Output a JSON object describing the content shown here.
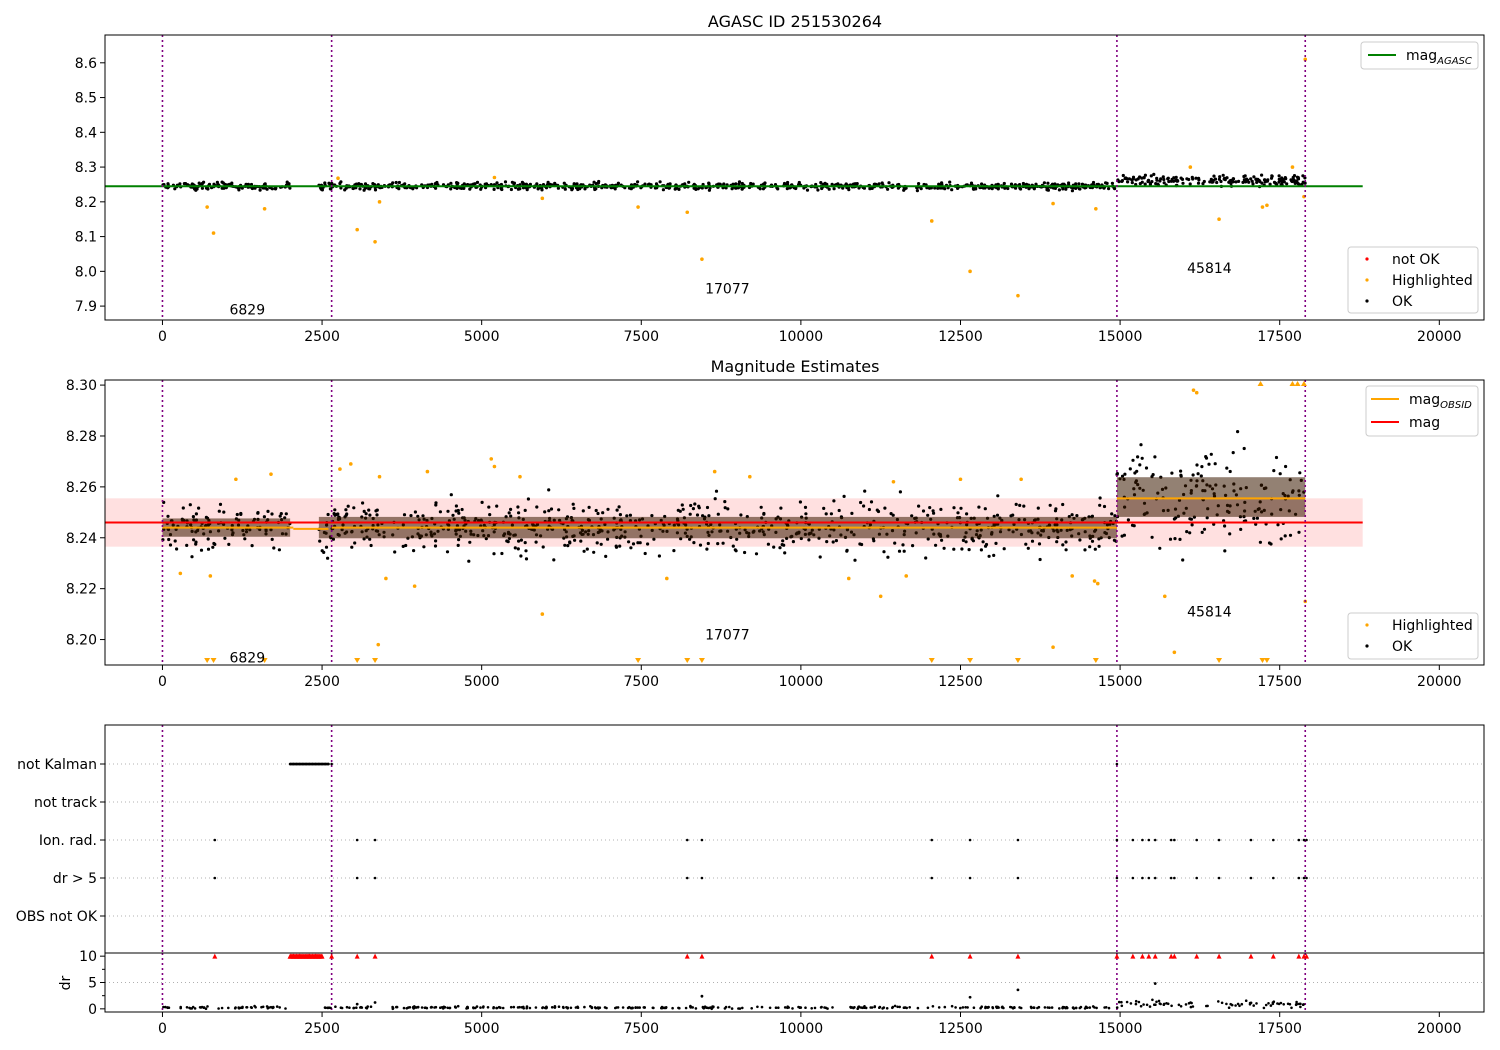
{
  "chart_data": [
    {
      "type": "scatter",
      "title": "AGASC ID 251530264",
      "xlabel": "",
      "ylabel": "",
      "xlim": [
        -900,
        20700
      ],
      "ylim": [
        7.86,
        8.68
      ],
      "xticks": [
        0,
        2500,
        5000,
        7500,
        10000,
        12500,
        15000,
        17500,
        20000
      ],
      "xtick_labels": [
        "0",
        "2500",
        "5000",
        "7500",
        "10000",
        "12500",
        "15000",
        "17500",
        "20000"
      ],
      "yticks": [
        7.9,
        8.0,
        8.1,
        8.2,
        8.3,
        8.4,
        8.5,
        8.6
      ],
      "ytick_labels": [
        "7.9",
        "8.0",
        "8.1",
        "8.2",
        "8.3",
        "8.4",
        "8.5",
        "8.6"
      ],
      "vlines": [
        0,
        2650,
        14950,
        17900
      ],
      "lines": [
        {
          "label": "mag",
          "subscript": "AGASC",
          "color": "#008000",
          "x": [
            -900,
            18800
          ],
          "y": [
            8.245,
            8.245
          ]
        }
      ],
      "segments": [
        {
          "x": [
            0,
            2000
          ],
          "center": 8.245,
          "spread": 0.007
        },
        {
          "x": [
            2450,
            14950
          ],
          "center": 8.245,
          "spread": 0.007
        },
        {
          "x": [
            14950,
            17900
          ],
          "center": 8.262,
          "spread": 0.012
        }
      ],
      "highlighted_points": [
        {
          "x": 700,
          "y": 8.185
        },
        {
          "x": 800,
          "y": 8.11
        },
        {
          "x": 1600,
          "y": 8.18
        },
        {
          "x": 3050,
          "y": 8.12
        },
        {
          "x": 3330,
          "y": 8.085
        },
        {
          "x": 3400,
          "y": 8.2
        },
        {
          "x": 5950,
          "y": 8.21
        },
        {
          "x": 7450,
          "y": 8.185
        },
        {
          "x": 8220,
          "y": 8.17
        },
        {
          "x": 8450,
          "y": 8.035
        },
        {
          "x": 12050,
          "y": 8.145
        },
        {
          "x": 12650,
          "y": 8.0
        },
        {
          "x": 13400,
          "y": 7.93
        },
        {
          "x": 13950,
          "y": 8.195
        },
        {
          "x": 14620,
          "y": 8.18
        },
        {
          "x": 16550,
          "y": 8.15
        },
        {
          "x": 17230,
          "y": 8.185
        },
        {
          "x": 17300,
          "y": 8.19
        },
        {
          "x": 17880,
          "y": 8.215
        },
        {
          "x": 17900,
          "y": 8.61
        },
        {
          "x": 2750,
          "y": 8.268
        },
        {
          "x": 5200,
          "y": 8.27
        },
        {
          "x": 16100,
          "y": 8.3
        },
        {
          "x": 17700,
          "y": 8.3
        }
      ],
      "annotations": [
        {
          "text": "6829",
          "x": 1050,
          "y": 7.89
        },
        {
          "text": "17077",
          "x": 8500,
          "y": 7.95
        },
        {
          "text": "45814",
          "x": 16050,
          "y": 8.01
        }
      ],
      "legends": [
        {
          "position": "top-right",
          "entries": [
            {
              "label": "mag",
              "subscript": "AGASC",
              "color": "#008000",
              "kind": "line"
            }
          ]
        },
        {
          "position": "bottom-right",
          "entries": [
            {
              "label": "not OK",
              "color": "#ff0000",
              "kind": "dot"
            },
            {
              "label": "Highlighted",
              "color": "#ffa500",
              "kind": "dot"
            },
            {
              "label": "OK",
              "color": "#000000",
              "kind": "dot"
            }
          ]
        }
      ]
    },
    {
      "type": "scatter",
      "title": "Magnitude Estimates",
      "xlabel": "",
      "ylabel": "",
      "xlim": [
        -900,
        20700
      ],
      "ylim": [
        8.19,
        8.302
      ],
      "xticks": [
        0,
        2500,
        5000,
        7500,
        10000,
        12500,
        15000,
        17500,
        20000
      ],
      "xtick_labels": [
        "0",
        "2500",
        "5000",
        "7500",
        "10000",
        "12500",
        "15000",
        "17500",
        "20000"
      ],
      "yticks": [
        8.2,
        8.22,
        8.24,
        8.26,
        8.28,
        8.3
      ],
      "ytick_labels": [
        "8.20",
        "8.22",
        "8.24",
        "8.26",
        "8.28",
        "8.30"
      ],
      "vlines": [
        0,
        2650,
        14950,
        17900
      ],
      "band": {
        "x": [
          -900,
          18800
        ],
        "y": [
          8.2365,
          8.2555
        ],
        "color": "#ff0000",
        "opacity": 0.12
      },
      "lines": [
        {
          "label": "mag",
          "color": "#ff0000",
          "x": [
            -900,
            18800
          ],
          "y": [
            8.246,
            8.246
          ]
        },
        {
          "label": "mag",
          "subscript": "OBSID",
          "color": "#ffa500",
          "x": [
            0,
            2050
          ],
          "y": [
            8.244,
            8.244
          ]
        },
        {
          "label": "mag",
          "subscript": "OBSID",
          "color": "#ffa500",
          "x": [
            2050,
            2600
          ],
          "y": [
            8.2435,
            8.2435
          ]
        },
        {
          "label": "mag",
          "subscript": "OBSID",
          "color": "#ffa500",
          "x": [
            2650,
            14950
          ],
          "y": [
            8.244,
            8.244
          ]
        },
        {
          "label": "mag",
          "subscript": "OBSID",
          "color": "#ffa500",
          "x": [
            14950,
            17900
          ],
          "y": [
            8.2555,
            8.2555
          ]
        }
      ],
      "segments": [
        {
          "x": [
            0,
            2000
          ],
          "center": 8.244,
          "spread": 0.006
        },
        {
          "x": [
            2450,
            14950
          ],
          "center": 8.244,
          "spread": 0.007
        },
        {
          "x": [
            14950,
            17900
          ],
          "center": 8.256,
          "spread": 0.013
        }
      ],
      "highlighted_points": [
        {
          "x": 280,
          "y": 8.226
        },
        {
          "x": 750,
          "y": 8.225
        },
        {
          "x": 1150,
          "y": 8.263
        },
        {
          "x": 1700,
          "y": 8.265
        },
        {
          "x": 2780,
          "y": 8.267
        },
        {
          "x": 2950,
          "y": 8.269
        },
        {
          "x": 3400,
          "y": 8.264
        },
        {
          "x": 3500,
          "y": 8.224
        },
        {
          "x": 3380,
          "y": 8.198
        },
        {
          "x": 3950,
          "y": 8.221
        },
        {
          "x": 4150,
          "y": 8.266
        },
        {
          "x": 5150,
          "y": 8.271
        },
        {
          "x": 5200,
          "y": 8.268
        },
        {
          "x": 5600,
          "y": 8.264
        },
        {
          "x": 5950,
          "y": 8.21
        },
        {
          "x": 7900,
          "y": 8.224
        },
        {
          "x": 8650,
          "y": 8.266
        },
        {
          "x": 9200,
          "y": 8.264
        },
        {
          "x": 10750,
          "y": 8.224
        },
        {
          "x": 11250,
          "y": 8.217
        },
        {
          "x": 11450,
          "y": 8.262
        },
        {
          "x": 11650,
          "y": 8.225
        },
        {
          "x": 12500,
          "y": 8.263
        },
        {
          "x": 13450,
          "y": 8.263
        },
        {
          "x": 13950,
          "y": 8.197
        },
        {
          "x": 14250,
          "y": 8.225
        },
        {
          "x": 14600,
          "y": 8.223
        },
        {
          "x": 14650,
          "y": 8.222
        },
        {
          "x": 15700,
          "y": 8.217
        },
        {
          "x": 15850,
          "y": 8.195
        },
        {
          "x": 16150,
          "y": 8.298
        },
        {
          "x": 16200,
          "y": 8.297
        },
        {
          "x": 17900,
          "y": 8.215
        }
      ],
      "offscale_low_x": [
        700,
        800,
        1600,
        3050,
        3330,
        7450,
        8220,
        8450,
        12050,
        12650,
        13400,
        14620,
        16550,
        17230,
        17300
      ],
      "offscale_high_x": [
        17200,
        17700,
        17780,
        17880
      ],
      "annotations": [
        {
          "text": "6829",
          "x": 1050,
          "y": 8.193
        },
        {
          "text": "17077",
          "x": 8500,
          "y": 8.202
        },
        {
          "text": "45814",
          "x": 16050,
          "y": 8.211
        }
      ],
      "legends": [
        {
          "position": "top-right",
          "entries": [
            {
              "label": "mag",
              "subscript": "OBSID",
              "color": "#ffa500",
              "kind": "line"
            },
            {
              "label": "mag",
              "color": "#ff0000",
              "kind": "line"
            }
          ]
        },
        {
          "position": "bottom-right",
          "entries": [
            {
              "label": "Highlighted",
              "color": "#ffa500",
              "kind": "dot"
            },
            {
              "label": "OK",
              "color": "#000000",
              "kind": "dot"
            }
          ]
        }
      ]
    },
    {
      "type": "scatter",
      "title": "",
      "xlabel": "",
      "ylabel": "",
      "xlim": [
        -900,
        20700
      ],
      "categories": [
        "not Kalman",
        "not track",
        "Ion. rad.",
        "dr > 5",
        "OBS not OK"
      ],
      "vlines": [
        0,
        2650,
        14950,
        17900
      ],
      "flags": [
        {
          "category": "not Kalman",
          "x": [
            2000,
            2050,
            2100,
            2150,
            2200,
            2250,
            2300,
            2350,
            2400,
            2450,
            2500,
            2550,
            2600,
            2650,
            14950
          ]
        },
        {
          "category": "not track",
          "x": []
        },
        {
          "category": "Ion. rad.",
          "x": [
            820,
            3050,
            3330,
            8220,
            8450,
            12050,
            12650,
            13400,
            14950,
            15200,
            15350,
            15450,
            15550,
            15800,
            15850,
            16200,
            16550,
            17050,
            17400,
            17800,
            17880,
            17920
          ]
        },
        {
          "category": "dr > 5",
          "x": [
            820,
            3050,
            3330,
            8220,
            8450,
            12050,
            12650,
            13400,
            14950,
            15200,
            15350,
            15450,
            15550,
            15800,
            15850,
            16200,
            16550,
            17050,
            17400,
            17800,
            17880,
            17920
          ]
        },
        {
          "category": "OBS not OK",
          "x": []
        }
      ]
    },
    {
      "type": "scatter",
      "title": "",
      "xlabel": "",
      "ylabel": "dr",
      "xlim": [
        -900,
        20700
      ],
      "ylim": [
        -0.6,
        10.6
      ],
      "xticks": [
        0,
        2500,
        5000,
        7500,
        10000,
        12500,
        15000,
        17500,
        20000
      ],
      "xtick_labels": [
        "0",
        "2500",
        "5000",
        "7500",
        "10000",
        "12500",
        "15000",
        "17500",
        "20000"
      ],
      "yticks": [
        0,
        5,
        10
      ],
      "ytick_labels": [
        "0",
        "5",
        "10"
      ],
      "vlines": [
        0,
        2650,
        14950,
        17900
      ],
      "segments": [
        {
          "x": [
            0,
            2000
          ],
          "center": 0.25,
          "spread": 0.15
        },
        {
          "x": [
            2450,
            14950
          ],
          "center": 0.25,
          "spread": 0.15
        },
        {
          "x": [
            14950,
            17900
          ],
          "center": 0.9,
          "spread": 0.45
        }
      ],
      "capped_x": [
        820,
        2000,
        2050,
        2100,
        2150,
        2200,
        2250,
        2300,
        2350,
        2400,
        2450,
        2500,
        2650,
        3050,
        3330,
        8220,
        8450,
        12050,
        12650,
        13400,
        14950,
        15200,
        15350,
        15450,
        15550,
        15800,
        15850,
        16200,
        16550,
        17050,
        17400,
        17800,
        17880,
        17920
      ],
      "points": [
        {
          "x": 3330,
          "y": 1.2
        },
        {
          "x": 8450,
          "y": 2.4
        },
        {
          "x": 12650,
          "y": 2.2
        },
        {
          "x": 13400,
          "y": 3.6
        },
        {
          "x": 15550,
          "y": 4.8
        },
        {
          "x": 3050,
          "y": 0.9
        }
      ]
    }
  ]
}
